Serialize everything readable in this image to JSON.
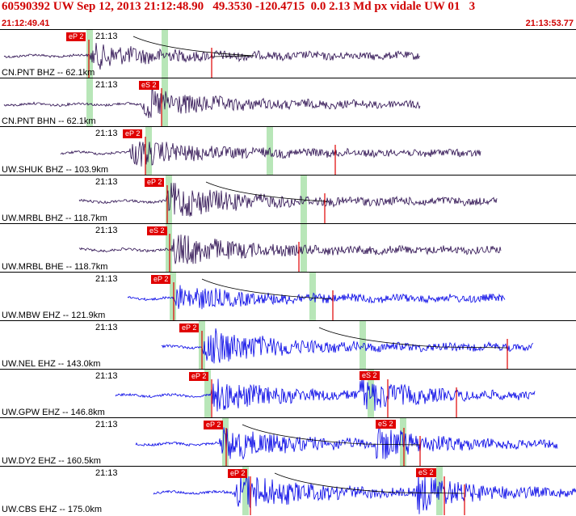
{
  "header": {
    "title": "60590392 UW Sep 12, 2013 21:12:48.90   49.3530 -120.4715  0.0 2.13 Md px vidale UW 01   3",
    "start_time": "21:12:49.41",
    "end_time": "21:13:53.77"
  },
  "colors": {
    "header_text": "#d00000",
    "short_period": "#0000e6",
    "broadband": "#2b0d4f",
    "pick": "#e00000",
    "window": "#b8e6b8"
  },
  "tick_label": "21:13",
  "traces": [
    {
      "label": "CN.PNT BHZ -- 62.1km",
      "p_pick": "eP 2",
      "color": "broadband"
    },
    {
      "label": "CN.PNT BHN -- 62.1km",
      "p_pick": "eS 2",
      "color": "broadband"
    },
    {
      "label": "UW.SHUK BHZ -- 103.9km",
      "p_pick": "eP 2",
      "color": "broadband"
    },
    {
      "label": "UW.MRBL BHZ -- 118.7km",
      "p_pick": "eP 2",
      "color": "broadband"
    },
    {
      "label": "UW.MRBL BHE -- 118.7km",
      "p_pick": "eS 2",
      "color": "broadband"
    },
    {
      "label": "UW.MBW EHZ -- 121.9km",
      "p_pick": "eP 2",
      "color": "short_period"
    },
    {
      "label": "UW.NEL EHZ -- 143.0km",
      "p_pick": "eP 2",
      "color": "short_period"
    },
    {
      "label": "UW.GPW EHZ -- 146.8km",
      "p_pick": "eP 2",
      "s_pick": "eS 2",
      "color": "short_period"
    },
    {
      "label": "UW.DY2 EHZ -- 160.5km",
      "p_pick": "eP 2",
      "s_pick": "eS 2",
      "color": "short_period"
    },
    {
      "label": "UW.CBS EHZ -- 175.0km",
      "p_pick": "eP 2",
      "s_pick": "eS 2",
      "color": "short_period"
    }
  ]
}
